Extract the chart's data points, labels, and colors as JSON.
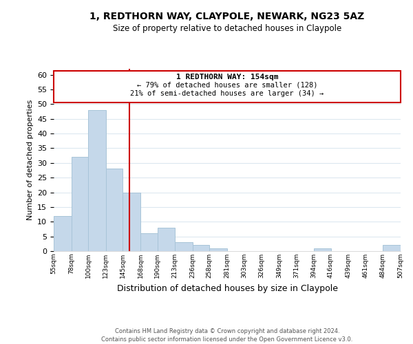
{
  "title": "1, REDTHORN WAY, CLAYPOLE, NEWARK, NG23 5AZ",
  "subtitle": "Size of property relative to detached houses in Claypole",
  "xlabel": "Distribution of detached houses by size in Claypole",
  "ylabel": "Number of detached properties",
  "bar_color": "#c5d8ea",
  "bar_edge_color": "#a8c4d8",
  "bin_edges": [
    55,
    78,
    100,
    123,
    145,
    168,
    190,
    213,
    236,
    258,
    281,
    303,
    326,
    349,
    371,
    394,
    416,
    439,
    461,
    484,
    507
  ],
  "bar_heights": [
    12,
    32,
    48,
    28,
    20,
    6,
    8,
    3,
    2,
    1,
    0,
    0,
    0,
    0,
    0,
    1,
    0,
    0,
    0,
    2
  ],
  "ylim": [
    0,
    62
  ],
  "yticks": [
    0,
    5,
    10,
    15,
    20,
    25,
    30,
    35,
    40,
    45,
    50,
    55,
    60
  ],
  "vline_x": 154,
  "vline_color": "#cc0000",
  "annotation_title": "1 REDTHORN WAY: 154sqm",
  "annotation_line1": "← 79% of detached houses are smaller (128)",
  "annotation_line2": "21% of semi-detached houses are larger (34) →",
  "annotation_box_color": "#ffffff",
  "annotation_box_edge": "#cc0000",
  "footer_line1": "Contains HM Land Registry data © Crown copyright and database right 2024.",
  "footer_line2": "Contains public sector information licensed under the Open Government Licence v3.0.",
  "background_color": "#ffffff",
  "grid_color": "#dce8f0"
}
